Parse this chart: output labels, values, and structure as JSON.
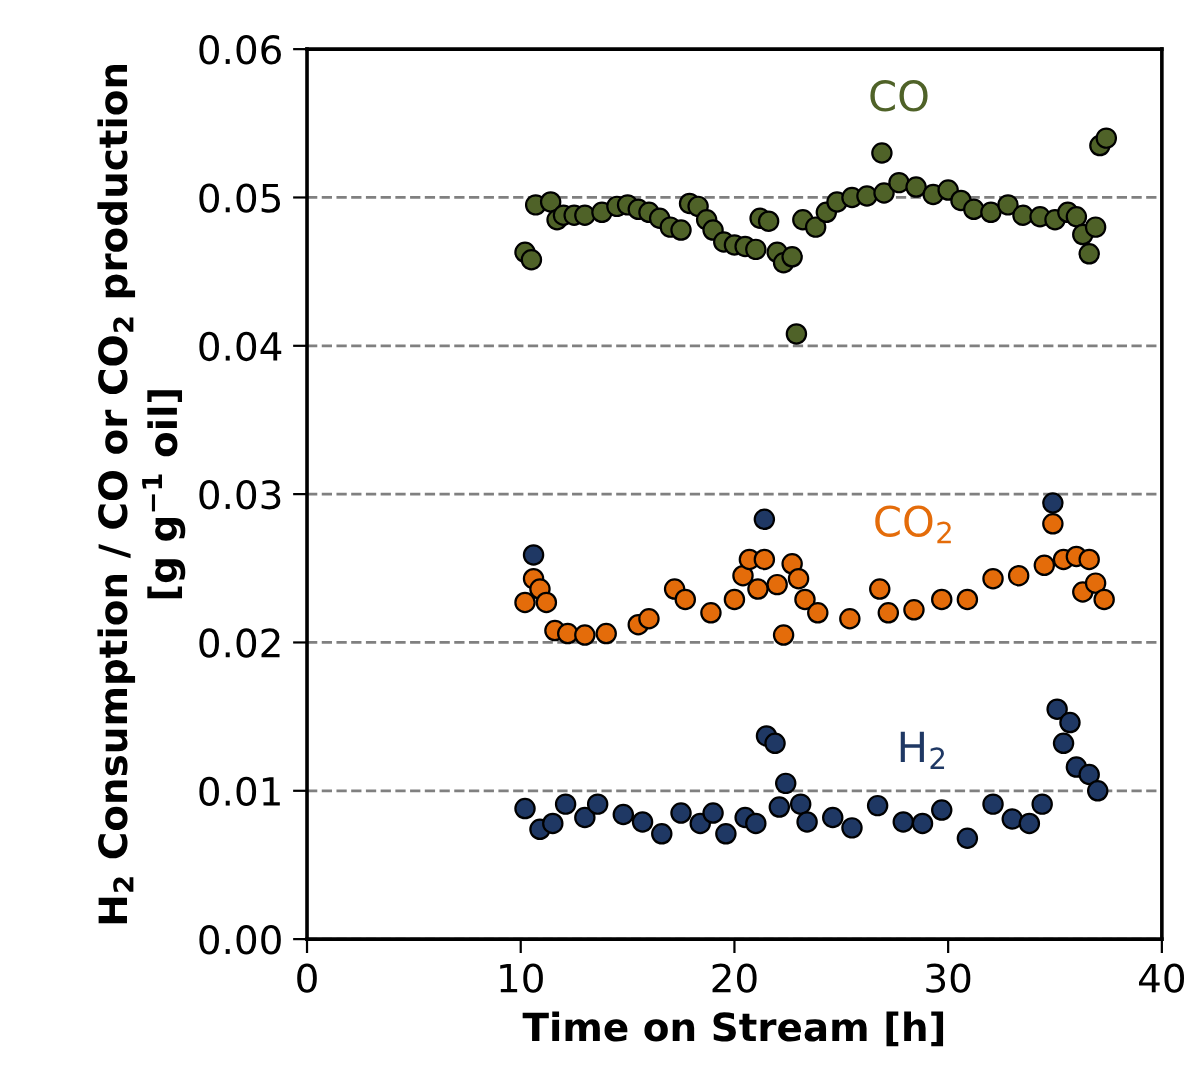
{
  "chart_data": {
    "type": "scatter",
    "xlabel": "Time on Stream [h]",
    "ylabel": "H$_{2}$ Consumption / CO or CO$_{2}$ production\n[g g$^{−1}$ oil]",
    "xlim": [
      0,
      40
    ],
    "xticks": [
      0,
      10,
      20,
      30,
      40
    ],
    "ylim": [
      0,
      0.06
    ],
    "yticks": [
      {
        "value": 0,
        "label": "0.00"
      },
      0.01,
      0.02,
      0.03,
      0.04,
      0.05,
      0.06
    ],
    "grid": "y",
    "marker": "circle",
    "legend": false,
    "series": [
      {
        "name": "CO",
        "color": "#4f6228",
        "x": [
          10.2,
          10.5,
          10.7,
          11.4,
          11.7,
          12.0,
          12.5,
          13.0,
          13.8,
          14.5,
          15.0,
          15.5,
          16.0,
          16.5,
          17.0,
          17.5,
          17.9,
          18.3,
          18.7,
          19.0,
          19.5,
          20.0,
          20.5,
          21.0,
          21.2,
          21.6,
          22.0,
          22.3,
          22.7,
          22.9,
          23.2,
          23.8,
          24.3,
          24.8,
          25.5,
          26.2,
          26.9,
          27.0,
          27.7,
          28.5,
          29.3,
          30.0,
          30.6,
          31.2,
          32.0,
          32.8,
          33.5,
          34.3,
          35.0,
          35.6,
          36.0,
          36.3,
          36.6,
          36.9,
          37.1,
          37.4
        ],
        "values": [
          0.0463,
          0.0458,
          0.0495,
          0.0497,
          0.0485,
          0.0488,
          0.0488,
          0.0488,
          0.049,
          0.0494,
          0.0495,
          0.0492,
          0.049,
          0.0486,
          0.048,
          0.0478,
          0.0496,
          0.0494,
          0.0485,
          0.0478,
          0.047,
          0.0468,
          0.0467,
          0.0465,
          0.0486,
          0.0484,
          0.0463,
          0.0456,
          0.046,
          0.0408,
          0.0485,
          0.048,
          0.049,
          0.0497,
          0.05,
          0.0501,
          0.053,
          0.0503,
          0.051,
          0.0507,
          0.0502,
          0.0505,
          0.0498,
          0.0492,
          0.049,
          0.0495,
          0.0488,
          0.0487,
          0.0485,
          0.049,
          0.0487,
          0.0475,
          0.0462,
          0.048,
          0.0535,
          0.054
        ]
      },
      {
        "name": "CO$_{2}$",
        "color": "#e46c0a",
        "x": [
          10.2,
          10.6,
          10.9,
          11.2,
          11.6,
          12.2,
          13.0,
          14.0,
          15.5,
          16.0,
          17.2,
          17.7,
          18.9,
          20.0,
          20.4,
          20.7,
          21.1,
          21.4,
          22.0,
          22.3,
          22.7,
          23.0,
          23.3,
          23.9,
          25.4,
          26.8,
          27.2,
          28.4,
          29.7,
          30.9,
          32.1,
          33.3,
          34.5,
          34.9,
          35.4,
          36.0,
          36.3,
          36.6,
          36.9,
          37.3
        ],
        "values": [
          0.0227,
          0.0243,
          0.0236,
          0.0227,
          0.0208,
          0.0206,
          0.0205,
          0.0206,
          0.0212,
          0.0216,
          0.0236,
          0.0229,
          0.022,
          0.0229,
          0.0245,
          0.0256,
          0.0236,
          0.0256,
          0.0239,
          0.0205,
          0.0253,
          0.0243,
          0.0229,
          0.022,
          0.0216,
          0.0236,
          0.022,
          0.0222,
          0.0229,
          0.0229,
          0.0243,
          0.0245,
          0.0252,
          0.028,
          0.0256,
          0.0258,
          0.0234,
          0.0256,
          0.024,
          0.0229
        ]
      },
      {
        "name": "H$_{2}$",
        "color": "#1f3864",
        "x": [
          10.2,
          10.6,
          10.9,
          11.5,
          12.1,
          13.0,
          13.6,
          14.8,
          15.7,
          16.6,
          17.5,
          18.4,
          19.0,
          19.6,
          20.5,
          21.0,
          21.4,
          21.5,
          21.9,
          22.1,
          22.4,
          23.1,
          23.4,
          24.6,
          25.5,
          26.7,
          27.9,
          28.8,
          29.7,
          30.9,
          32.1,
          33.0,
          33.8,
          34.4,
          34.9,
          35.1,
          35.4,
          35.7,
          36.0,
          36.6,
          37.0
        ],
        "values": [
          0.0088,
          0.0259,
          0.0074,
          0.0078,
          0.0091,
          0.0082,
          0.0091,
          0.0084,
          0.0079,
          0.0071,
          0.0085,
          0.0078,
          0.0085,
          0.0071,
          0.0082,
          0.0078,
          0.0283,
          0.0137,
          0.0132,
          0.0089,
          0.0105,
          0.0091,
          0.0079,
          0.0082,
          0.0075,
          0.009,
          0.0079,
          0.0078,
          0.0087,
          0.0068,
          0.0091,
          0.0081,
          0.0078,
          0.0091,
          0.0294,
          0.0155,
          0.0132,
          0.0146,
          0.0116,
          0.0111,
          0.01
        ]
      }
    ]
  }
}
